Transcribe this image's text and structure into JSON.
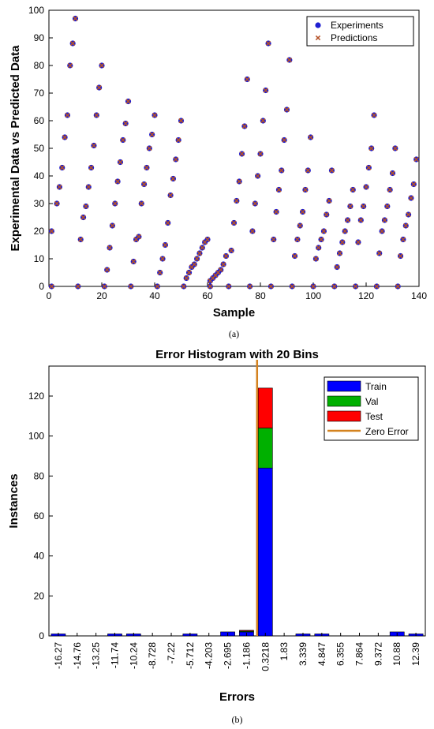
{
  "chart_data": [
    {
      "type": "scatter",
      "xlabel": "Sample",
      "ylabel": "Experimental Data vs Predicted Data",
      "xlim": [
        0,
        140
      ],
      "ylim": [
        0,
        100
      ],
      "xticks": [
        "0",
        "20",
        "40",
        "60",
        "80",
        "100",
        "120",
        "140"
      ],
      "yticks": [
        "0",
        "10",
        "20",
        "30",
        "40",
        "50",
        "60",
        "70",
        "80",
        "90",
        "100"
      ],
      "caption": "(a)",
      "legend_position": "top-right",
      "series": [
        {
          "name": "Experiments",
          "color": "#1f1fd1",
          "marker": "circle"
        },
        {
          "name": "Predictions",
          "color": "#b5532a",
          "marker": "x"
        }
      ],
      "points": [
        [
          1,
          20
        ],
        [
          1,
          0
        ],
        [
          3,
          30
        ],
        [
          4,
          36
        ],
        [
          5,
          43
        ],
        [
          6,
          54
        ],
        [
          7,
          62
        ],
        [
          8,
          80
        ],
        [
          9,
          88
        ],
        [
          10,
          97
        ],
        [
          11,
          0
        ],
        [
          12,
          17
        ],
        [
          13,
          25
        ],
        [
          14,
          29
        ],
        [
          15,
          36
        ],
        [
          16,
          43
        ],
        [
          17,
          51
        ],
        [
          18,
          62
        ],
        [
          19,
          72
        ],
        [
          20,
          80
        ],
        [
          21,
          0
        ],
        [
          22,
          6
        ],
        [
          23,
          14
        ],
        [
          24,
          22
        ],
        [
          25,
          30
        ],
        [
          26,
          38
        ],
        [
          27,
          45
        ],
        [
          28,
          53
        ],
        [
          29,
          59
        ],
        [
          30,
          67
        ],
        [
          31,
          0
        ],
        [
          32,
          9
        ],
        [
          33,
          17
        ],
        [
          34,
          18
        ],
        [
          35,
          30
        ],
        [
          36,
          37
        ],
        [
          37,
          43
        ],
        [
          38,
          50
        ],
        [
          39,
          55
        ],
        [
          40,
          62
        ],
        [
          41,
          0
        ],
        [
          42,
          5
        ],
        [
          43,
          10
        ],
        [
          44,
          15
        ],
        [
          45,
          23
        ],
        [
          46,
          33
        ],
        [
          47,
          39
        ],
        [
          48,
          46
        ],
        [
          49,
          53
        ],
        [
          50,
          60
        ],
        [
          51,
          0
        ],
        [
          52,
          3
        ],
        [
          53,
          5
        ],
        [
          54,
          7
        ],
        [
          55,
          8
        ],
        [
          56,
          10
        ],
        [
          57,
          12
        ],
        [
          58,
          14
        ],
        [
          59,
          16
        ],
        [
          60,
          17
        ],
        [
          61,
          0
        ],
        [
          61,
          2
        ],
        [
          62,
          3
        ],
        [
          63,
          4
        ],
        [
          64,
          5
        ],
        [
          65,
          6
        ],
        [
          66,
          8
        ],
        [
          67,
          11
        ],
        [
          68,
          0
        ],
        [
          69,
          13
        ],
        [
          70,
          23
        ],
        [
          71,
          31
        ],
        [
          72,
          38
        ],
        [
          73,
          48
        ],
        [
          74,
          58
        ],
        [
          75,
          75
        ],
        [
          76,
          0
        ],
        [
          77,
          20
        ],
        [
          78,
          30
        ],
        [
          79,
          40
        ],
        [
          80,
          48
        ],
        [
          81,
          60
        ],
        [
          82,
          71
        ],
        [
          83,
          88
        ],
        [
          84,
          0
        ],
        [
          85,
          17
        ],
        [
          86,
          27
        ],
        [
          87,
          35
        ],
        [
          88,
          42
        ],
        [
          89,
          53
        ],
        [
          90,
          64
        ],
        [
          91,
          82
        ],
        [
          92,
          0
        ],
        [
          93,
          11
        ],
        [
          94,
          17
        ],
        [
          95,
          22
        ],
        [
          96,
          27
        ],
        [
          97,
          35
        ],
        [
          98,
          42
        ],
        [
          99,
          54
        ],
        [
          100,
          0
        ],
        [
          101,
          10
        ],
        [
          102,
          14
        ],
        [
          103,
          17
        ],
        [
          104,
          20
        ],
        [
          105,
          26
        ],
        [
          106,
          31
        ],
        [
          107,
          42
        ],
        [
          108,
          0
        ],
        [
          109,
          7
        ],
        [
          110,
          12
        ],
        [
          111,
          16
        ],
        [
          112,
          20
        ],
        [
          113,
          24
        ],
        [
          114,
          29
        ],
        [
          115,
          35
        ],
        [
          116,
          0
        ],
        [
          117,
          16
        ],
        [
          118,
          24
        ],
        [
          119,
          29
        ],
        [
          120,
          36
        ],
        [
          121,
          43
        ],
        [
          122,
          50
        ],
        [
          123,
          62
        ],
        [
          124,
          0
        ],
        [
          125,
          12
        ],
        [
          126,
          20
        ],
        [
          127,
          24
        ],
        [
          128,
          29
        ],
        [
          129,
          35
        ],
        [
          130,
          41
        ],
        [
          131,
          50
        ],
        [
          132,
          0
        ],
        [
          133,
          11
        ],
        [
          134,
          17
        ],
        [
          135,
          22
        ],
        [
          136,
          26
        ],
        [
          137,
          32
        ],
        [
          138,
          37
        ],
        [
          139,
          46
        ]
      ]
    },
    {
      "type": "bar",
      "title": "Error Histogram with 20 Bins",
      "xlabel": "Errors",
      "ylabel": "Instances",
      "ylim": [
        0,
        135
      ],
      "yticks": [
        "0",
        "20",
        "40",
        "60",
        "80",
        "100",
        "120"
      ],
      "caption": "(b)",
      "legend_position": "top-right",
      "categories": [
        "-16.27",
        "-14.76",
        "-13.25",
        "-11.74",
        "-10.24",
        "-8.728",
        "-7.22",
        "-5.712",
        "-4.203",
        "-2.695",
        "-1.186",
        "0.3218",
        "1.83",
        "3.339",
        "4.847",
        "6.355",
        "7.864",
        "9.372",
        "10.88",
        "12.39"
      ],
      "series": [
        {
          "name": "Train",
          "color": "#0000ff",
          "values": [
            1,
            0,
            0,
            1,
            1,
            0,
            0,
            1,
            0,
            2,
            2,
            84,
            0,
            1,
            1,
            0,
            0,
            0,
            2,
            1
          ]
        },
        {
          "name": "Val",
          "color": "#00b000",
          "values": [
            0,
            0,
            0,
            0,
            0,
            0,
            0,
            0,
            0,
            0,
            0.4,
            20,
            0,
            0,
            0,
            0,
            0,
            0,
            0,
            0
          ]
        },
        {
          "name": "Test",
          "color": "#ff0000",
          "values": [
            0,
            0,
            0,
            0,
            0,
            0,
            0,
            0,
            0,
            0,
            0.4,
            20,
            0,
            0,
            0,
            0,
            0,
            0,
            0,
            0
          ]
        }
      ],
      "zero_error": {
        "label": "Zero Error",
        "color": "#d4821e",
        "x_bin": 11
      }
    }
  ]
}
